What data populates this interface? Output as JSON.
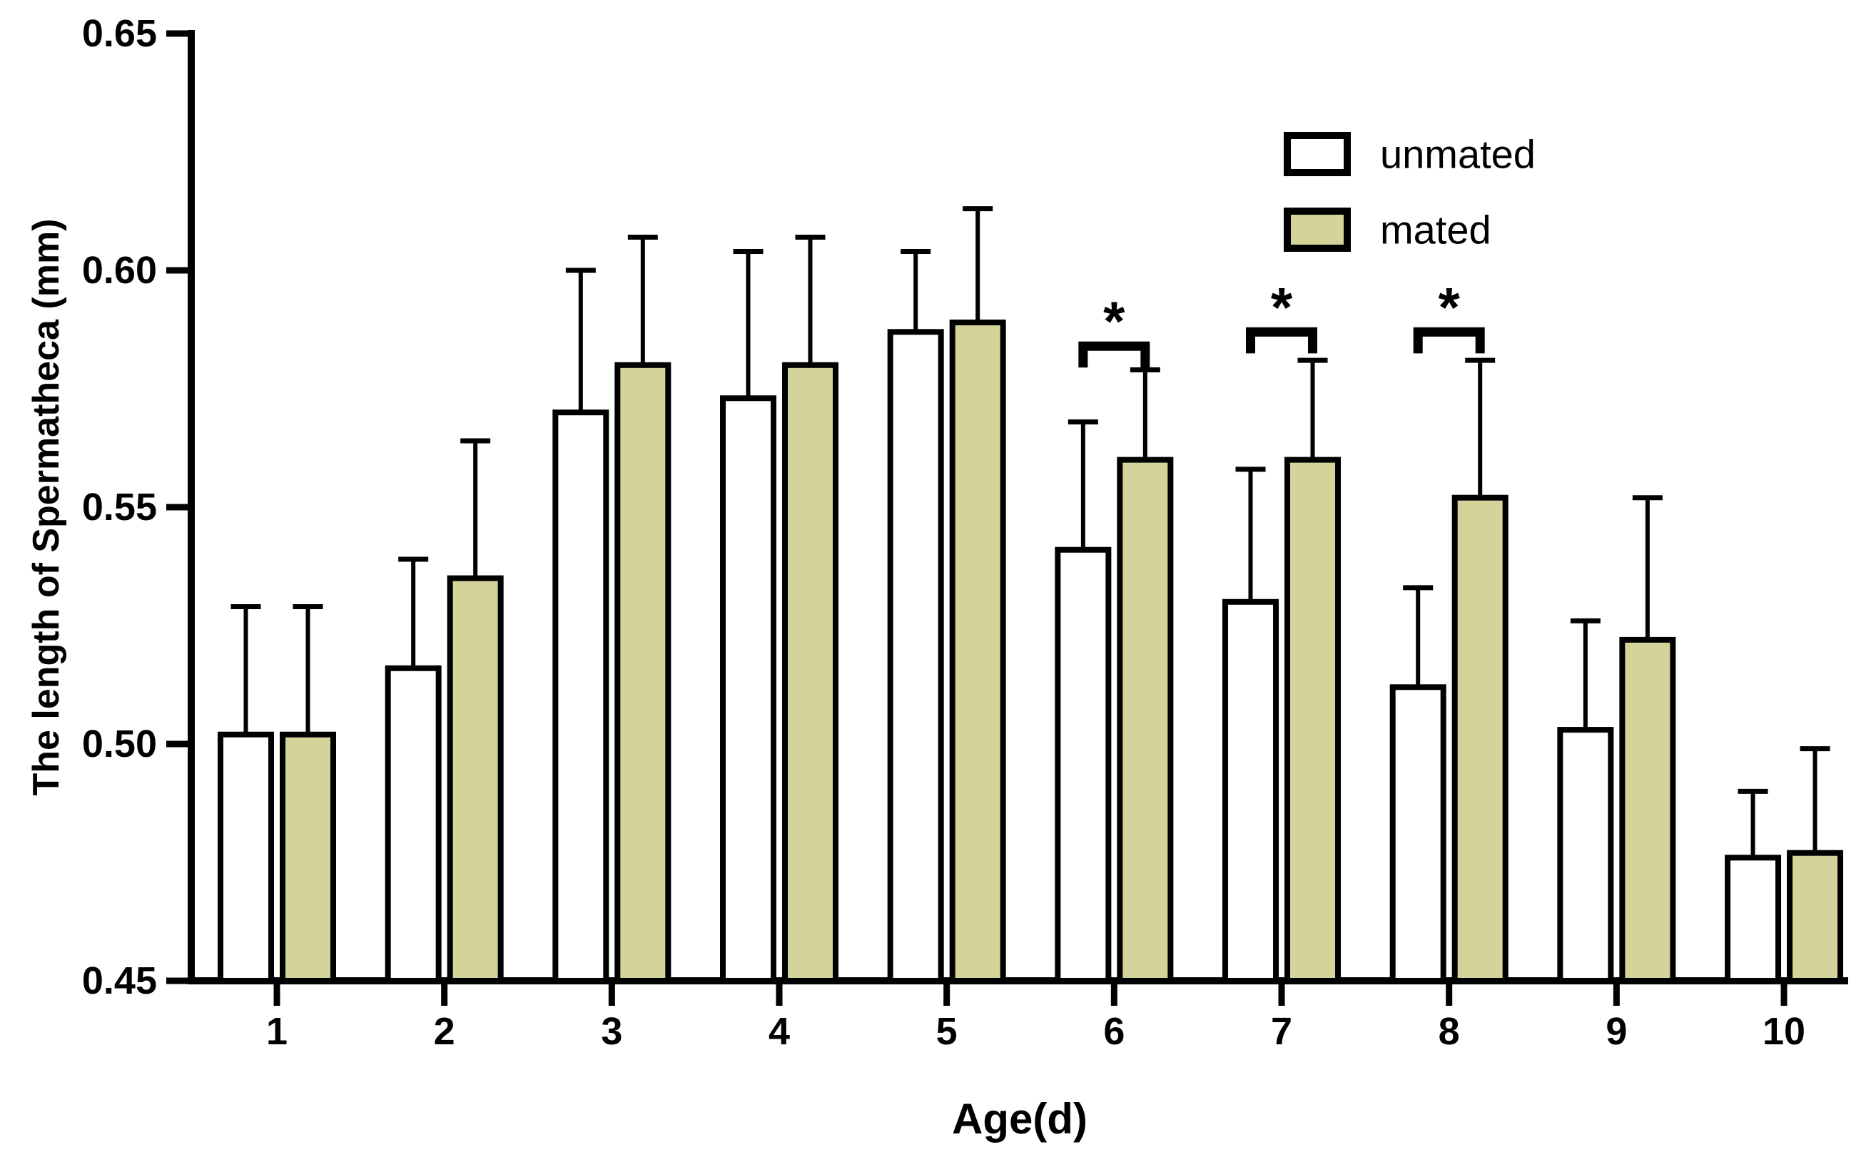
{
  "page": {
    "background": "#ffffff"
  },
  "chart_data": {
    "type": "bar",
    "title": "",
    "xlabel": "Age(d)",
    "ylabel": "The length of Spermatheca (mm)",
    "categories": [
      "1",
      "2",
      "3",
      "4",
      "5",
      "6",
      "7",
      "8",
      "9",
      "10"
    ],
    "series": [
      {
        "name": "unmated",
        "fill": "#ffffff",
        "outline": "#000000",
        "values": [
          0.502,
          0.516,
          0.57,
          0.573,
          0.587,
          0.541,
          0.53,
          0.512,
          0.503,
          0.476
        ],
        "errors_plus": [
          0.027,
          0.023,
          0.03,
          0.031,
          0.017,
          0.027,
          0.028,
          0.021,
          0.023,
          0.014
        ]
      },
      {
        "name": "mated",
        "fill": "#d4d39a",
        "outline": "#000000",
        "values": [
          0.502,
          0.535,
          0.58,
          0.58,
          0.589,
          0.56,
          0.56,
          0.552,
          0.522,
          0.477
        ],
        "errors_plus": [
          0.027,
          0.029,
          0.027,
          0.027,
          0.024,
          0.019,
          0.021,
          0.029,
          0.03,
          0.022
        ]
      }
    ],
    "ylim": [
      0.45,
      0.65
    ],
    "yticks": [
      0.45,
      0.5,
      0.55,
      0.6,
      0.65
    ],
    "ytick_labels": [
      "0.45",
      "0.50",
      "0.55",
      "0.60",
      "0.65"
    ],
    "xtick_labels": [
      "1",
      "2",
      "3",
      "4",
      "5",
      "6",
      "7",
      "8",
      "9",
      "10"
    ],
    "legend": {
      "position": "top-right",
      "entries": [
        {
          "label": "unmated",
          "fill": "#ffffff"
        },
        {
          "label": "mated",
          "fill": "#d4d39a"
        }
      ]
    },
    "significance": [
      {
        "category": "6",
        "label": "*",
        "bracket_y": 0.584
      },
      {
        "category": "7",
        "label": "*",
        "bracket_y": 0.587
      },
      {
        "category": "8",
        "label": "*",
        "bracket_y": 0.587
      }
    ],
    "error_bars": "sd-upper-only",
    "grid": false,
    "axis_color": "#000000"
  }
}
